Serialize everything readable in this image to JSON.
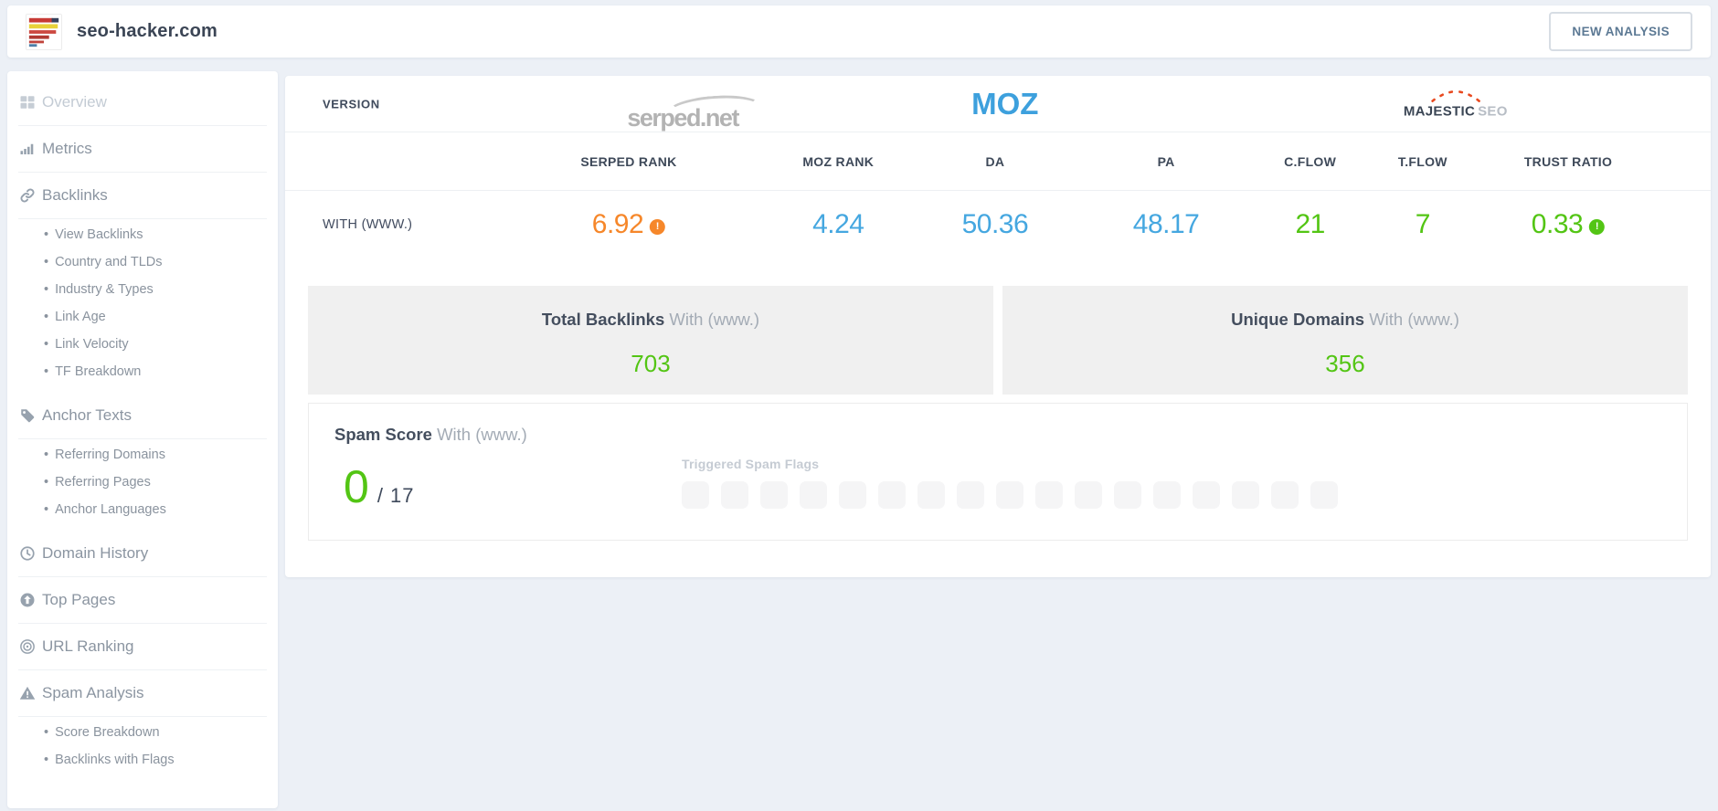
{
  "topbar": {
    "site_title": "seo-hacker.com",
    "new_analysis": "NEW ANALYSIS"
  },
  "sidebar": {
    "items": [
      {
        "label": "Overview",
        "icon": "grid"
      },
      {
        "label": "Metrics",
        "icon": "bar-chart"
      },
      {
        "label": "Backlinks",
        "icon": "link",
        "subs": [
          "View Backlinks",
          "Country and TLDs",
          "Industry & Types",
          "Link Age",
          "Link Velocity",
          "TF Breakdown"
        ]
      },
      {
        "label": "Anchor Texts",
        "icon": "tag",
        "subs": [
          "Referring Domains",
          "Referring Pages",
          "Anchor Languages"
        ]
      },
      {
        "label": "Domain History",
        "icon": "clock"
      },
      {
        "label": "Top Pages",
        "icon": "arrow-up-circle"
      },
      {
        "label": "URL Ranking",
        "icon": "target-eye"
      },
      {
        "label": "Spam Analysis",
        "icon": "warning-triangle",
        "subs": [
          "Score Breakdown",
          "Backlinks with Flags"
        ]
      }
    ]
  },
  "table": {
    "version_label": "VERSION",
    "providers": {
      "serped": "serped.net",
      "moz": "MOZ",
      "majestic": "MAJESTIC",
      "majestic_suffix": "SEO"
    },
    "columns": [
      "SERPED RANK",
      "MOZ RANK",
      "DA",
      "PA",
      "C.FLOW",
      "T.FLOW",
      "TRUST RATIO"
    ],
    "row": {
      "label": "WITH (WWW.)",
      "serped_rank": "6.92",
      "moz_rank": "4.24",
      "da": "50.36",
      "pa": "48.17",
      "cflow": "21",
      "tflow": "7",
      "trust_ratio": "0.33"
    }
  },
  "summary": {
    "cards": [
      {
        "title": "Total Backlinks",
        "suffix": "With (www.)",
        "value": "703"
      },
      {
        "title": "Unique Domains",
        "suffix": "With (www.)",
        "value": "356"
      }
    ]
  },
  "spam": {
    "title": "Spam Score",
    "suffix": "With (www.)",
    "score": "0",
    "score_max": "/ 17",
    "flags_label": "Triggered Spam Flags",
    "flags_count": 17
  },
  "colors": {
    "orange": "#f6872a",
    "blue": "#45a7e0",
    "green": "#53c514"
  }
}
